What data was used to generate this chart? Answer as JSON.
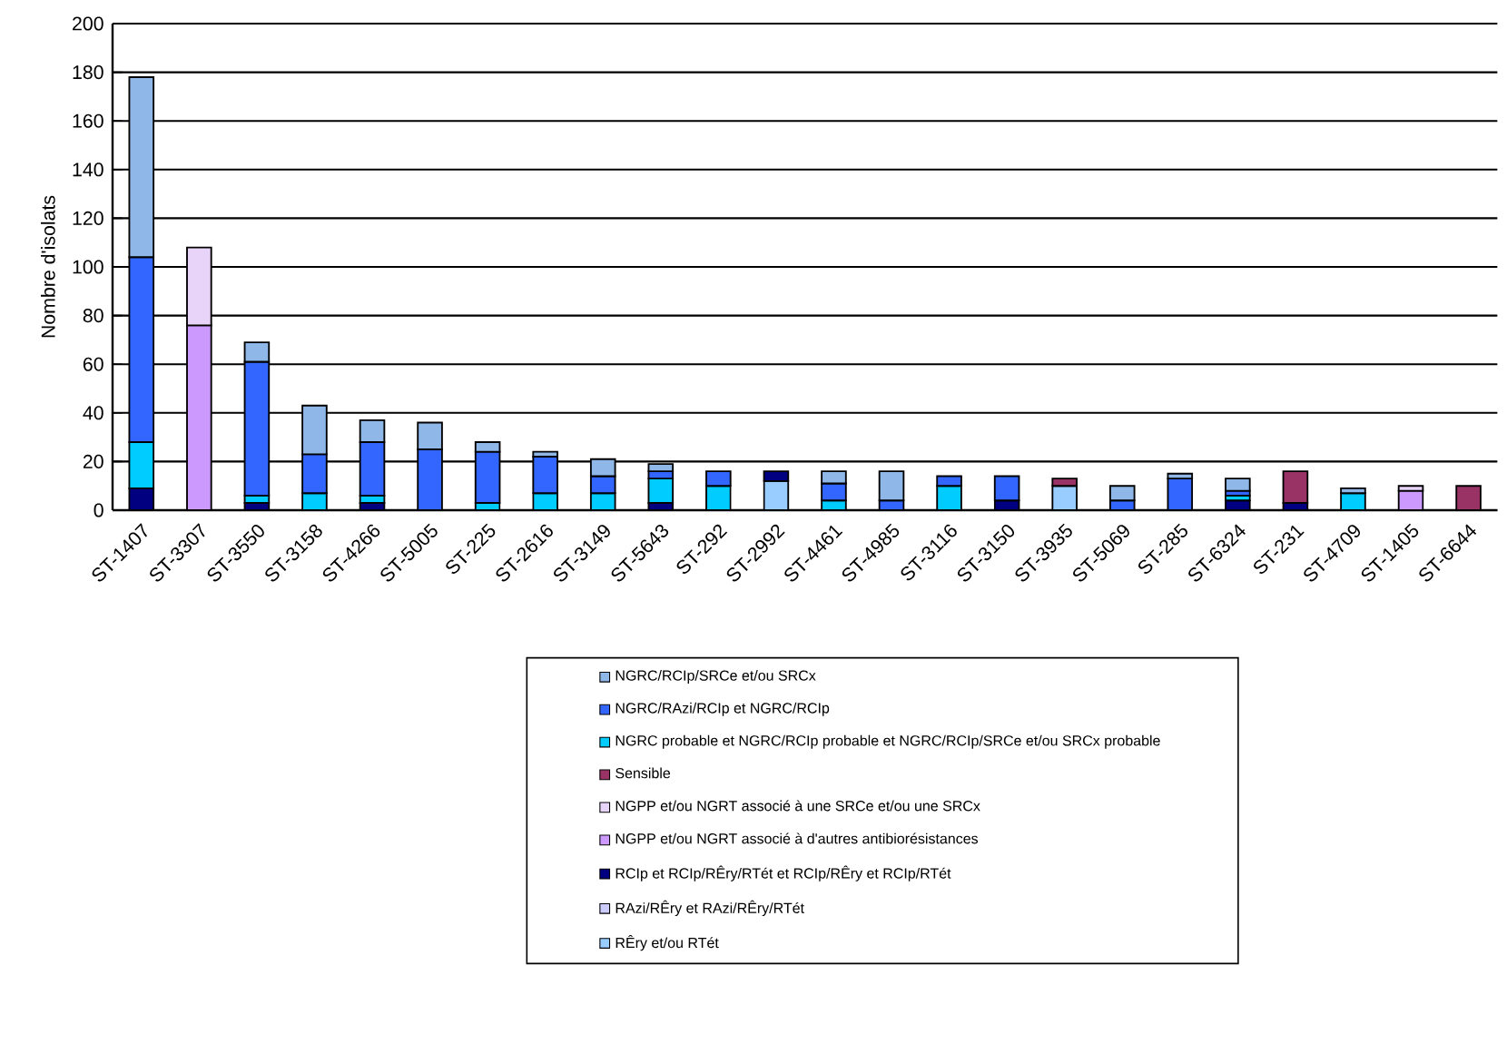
{
  "chart_data": {
    "type": "bar",
    "stacked": true,
    "ylabel": "Nombre d'isolats",
    "categories": [
      "ST-1407",
      "ST-3307",
      "ST-3550",
      "ST-3158",
      "ST-4266",
      "ST-5005",
      "ST-225",
      "ST-2616",
      "ST-3149",
      "ST-5643",
      "ST-292",
      "ST-2992",
      "ST-4461",
      "ST-4985",
      "ST-3116",
      "ST-3150",
      "ST-3935",
      "ST-5069",
      "ST-285",
      "ST-6324",
      "ST-231",
      "ST-4709",
      "ST-1405",
      "ST-6644"
    ],
    "series": [
      {
        "name": "RÊry et/ou RTét",
        "color": "#99ccff",
        "values": [
          null,
          null,
          null,
          null,
          null,
          null,
          null,
          null,
          null,
          null,
          null,
          12,
          null,
          null,
          null,
          null,
          10,
          null,
          null,
          null,
          null,
          null,
          null,
          null
        ]
      },
      {
        "name": "RAzi/RÊry et RAzi/RÊry/RTét",
        "color": "#ccccff",
        "values": [
          null,
          null,
          null,
          null,
          null,
          null,
          null,
          null,
          null,
          null,
          null,
          null,
          null,
          null,
          null,
          null,
          null,
          null,
          null,
          null,
          null,
          null,
          null,
          null
        ]
      },
      {
        "name": "RCIp et  RCIp/RÊry/RTét et RCIp/RÊry et RCIp/RTét",
        "color": "#000080",
        "values": [
          9,
          null,
          3,
          null,
          3,
          null,
          null,
          null,
          null,
          3,
          null,
          4,
          null,
          null,
          null,
          4,
          null,
          null,
          null,
          4,
          3,
          null,
          null,
          null
        ]
      },
      {
        "name": "NGPP et/ou NGRT associé à d'autres antibiorésistances",
        "color": "#cc99ff",
        "values": [
          null,
          76,
          null,
          null,
          null,
          null,
          null,
          null,
          null,
          null,
          null,
          null,
          null,
          null,
          null,
          null,
          null,
          null,
          null,
          null,
          null,
          null,
          8,
          null
        ]
      },
      {
        "name": "NGPP et/ou NGRT associé à une SRCe et/ou une SRCx",
        "color": "#e8d4f8",
        "values": [
          null,
          32,
          null,
          null,
          null,
          null,
          null,
          null,
          null,
          null,
          null,
          null,
          null,
          null,
          null,
          null,
          null,
          null,
          null,
          null,
          null,
          null,
          2,
          null
        ]
      },
      {
        "name": "Sensible",
        "color": "#993366",
        "values": [
          null,
          null,
          null,
          null,
          null,
          null,
          null,
          null,
          null,
          null,
          null,
          null,
          null,
          null,
          null,
          null,
          3,
          null,
          null,
          null,
          13,
          null,
          null,
          10
        ]
      },
      {
        "name": "NGRC probable et NGRC/RCIp probable et NGRC/RCIp/SRCe et/ou SRCx probable",
        "color": "#00ccff",
        "values": [
          19,
          null,
          3,
          7,
          3,
          null,
          3,
          7,
          7,
          10,
          10,
          null,
          4,
          null,
          10,
          null,
          null,
          null,
          null,
          2,
          null,
          7,
          null,
          null
        ]
      },
      {
        "name": "NGRC/RAzi/RCIp et NGRC/RCIp",
        "color": "#3366ff",
        "values": [
          76,
          null,
          55,
          16,
          22,
          25,
          21,
          15,
          7,
          3,
          6,
          null,
          7,
          4,
          4,
          10,
          null,
          4,
          13,
          2,
          null,
          null,
          null,
          null
        ]
      },
      {
        "name": "NGRC/RCIp/SRCe et/ou SRCx",
        "color": "#8fb8e8",
        "values": [
          74,
          null,
          8,
          20,
          9,
          11,
          4,
          2,
          7,
          3,
          null,
          null,
          5,
          12,
          null,
          null,
          null,
          6,
          2,
          5,
          null,
          2,
          null,
          null
        ]
      }
    ],
    "ylim": [
      0,
      200
    ],
    "yticks": [
      0,
      20,
      40,
      60,
      80,
      100,
      120,
      140,
      160,
      180,
      200
    ],
    "grid": "y",
    "legend": "bottom"
  }
}
